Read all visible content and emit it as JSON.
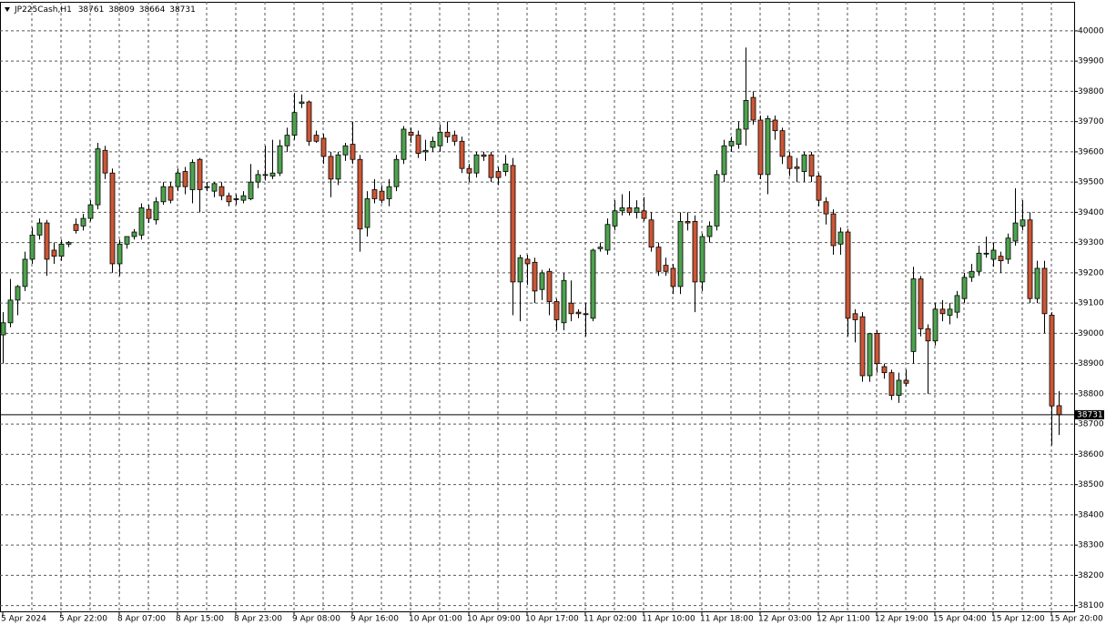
{
  "chart_data": {
    "type": "candlestick",
    "symbol": "JP225Cash,H1",
    "categories": [
      "5 Apr 2024",
      null,
      null,
      null,
      null,
      null,
      null,
      null,
      "5 Apr 22:00",
      null,
      null,
      null,
      null,
      null,
      null,
      null,
      "8 Apr 07:00",
      null,
      null,
      null,
      null,
      null,
      null,
      null,
      "8 Apr 15:00",
      null,
      null,
      null,
      null,
      null,
      null,
      null,
      "8 Apr 23:00",
      null,
      null,
      null,
      null,
      null,
      null,
      null,
      "9 Apr 08:00",
      null,
      null,
      null,
      null,
      null,
      null,
      null,
      "9 Apr 16:00",
      null,
      null,
      null,
      null,
      null,
      null,
      null,
      "10 Apr 01:00",
      null,
      null,
      null,
      null,
      null,
      null,
      null,
      "10 Apr 09:00",
      null,
      null,
      null,
      null,
      null,
      null,
      null,
      "10 Apr 17:00",
      null,
      null,
      null,
      null,
      null,
      null,
      null,
      "11 Apr 02:00",
      null,
      null,
      null,
      null,
      null,
      null,
      null,
      "11 Apr 10:00",
      null,
      null,
      null,
      null,
      null,
      null,
      null,
      "11 Apr 18:00",
      null,
      null,
      null,
      null,
      null,
      null,
      null,
      "12 Apr 03:00",
      null,
      null,
      null,
      null,
      null,
      null,
      null,
      "12 Apr 11:00",
      null,
      null,
      null,
      null,
      null,
      null,
      null,
      "12 Apr 19:00",
      null,
      null,
      null,
      null,
      null,
      null,
      null,
      "15 Apr 04:00",
      null,
      null,
      null,
      null,
      null,
      null,
      null,
      "15 Apr 12:00",
      null,
      null,
      null,
      null,
      null,
      null,
      null,
      "15 Apr 20:00",
      null
    ],
    "open": [
      38995,
      39035,
      39110,
      39155,
      39245,
      39325,
      39365,
      39275,
      39255,
      39295,
      39360,
      39355,
      39380,
      39425,
      39605,
      39530,
      39230,
      39295,
      39320,
      39325,
      39410,
      39375,
      39435,
      39485,
      39485,
      39535,
      39475,
      39575,
      39485,
      39470,
      39485,
      39455,
      39445,
      39440,
      39445,
      39500,
      39525,
      39520,
      39530,
      39620,
      39655,
      39760,
      39765,
      39655,
      39645,
      39585,
      39510,
      39590,
      39625,
      39575,
      39350,
      39475,
      39470,
      39445,
      39485,
      39575,
      39665,
      39655,
      39600,
      39615,
      39620,
      39665,
      39655,
      39635,
      39545,
      39530,
      39590,
      39590,
      39535,
      39535,
      39555,
      39170,
      39245,
      39235,
      39145,
      39205,
      39105,
      39035,
      39100,
      39070,
      39065,
      39050,
      39280,
      39275,
      39355,
      39405,
      39415,
      39400,
      39405,
      39375,
      39285,
      39225,
      39215,
      39155,
      39370,
      39370,
      39170,
      39320,
      39355,
      39525,
      39620,
      39625,
      39675,
      39780,
      39705,
      39525,
      39705,
      39670,
      39585,
      39550,
      39535,
      39590,
      39520,
      39435,
      39395,
      39295,
      39335,
      39065,
      39055,
      38860,
      39000,
      38890,
      38870,
      38795,
      38845,
      38940,
      39180,
      39015,
      38975,
      39080,
      39060,
      39070,
      39115,
      39185,
      39205,
      39265,
      39245,
      39255,
      39245,
      39305,
      39355,
      39375,
      39115,
      39215,
      39060,
      38761
    ],
    "high": [
      39070,
      39180,
      39160,
      39270,
      39350,
      39380,
      39375,
      39300,
      39310,
      39305,
      39380,
      39395,
      39440,
      39630,
      39620,
      39545,
      39310,
      39320,
      39345,
      39430,
      39425,
      39450,
      39500,
      39500,
      39545,
      39550,
      39575,
      39580,
      39500,
      39500,
      39500,
      39465,
      39460,
      39470,
      39560,
      39540,
      39620,
      39640,
      39640,
      39680,
      39795,
      39790,
      39770,
      39670,
      39660,
      39600,
      39600,
      39630,
      39700,
      39590,
      39470,
      39510,
      39490,
      39510,
      39590,
      39685,
      39680,
      39670,
      39640,
      39650,
      39690,
      39700,
      39670,
      39650,
      39560,
      39600,
      39600,
      39600,
      39550,
      39590,
      39580,
      39260,
      39260,
      39250,
      39210,
      39215,
      39115,
      39200,
      39175,
      39080,
      39100,
      39280,
      39300,
      39380,
      39440,
      39460,
      39470,
      39440,
      39450,
      39400,
      39300,
      39250,
      39230,
      39400,
      39400,
      39390,
      39330,
      39370,
      39540,
      39640,
      39650,
      39700,
      39945,
      39800,
      39720,
      39720,
      39720,
      39680,
      39600,
      39580,
      39600,
      39600,
      39530,
      39450,
      39410,
      39350,
      39345,
      39080,
      39070,
      39000,
      39010,
      38900,
      38880,
      38870,
      38880,
      39220,
      39190,
      39030,
      39100,
      39110,
      39100,
      39140,
      39200,
      39230,
      39290,
      39320,
      39300,
      39270,
      39330,
      39480,
      39440,
      39400,
      39240,
      39240,
      39070,
      38809
    ],
    "low": [
      38900,
      39020,
      39060,
      39140,
      39230,
      39310,
      39190,
      39230,
      39240,
      39285,
      39330,
      39340,
      39370,
      39410,
      39510,
      39200,
      39190,
      39280,
      39310,
      39310,
      39365,
      39360,
      39425,
      39430,
      39470,
      39460,
      39430,
      39400,
      39470,
      39450,
      39440,
      39420,
      39425,
      39430,
      39440,
      39480,
      39505,
      39510,
      39520,
      39600,
      39640,
      39745,
      39620,
      39630,
      39560,
      39450,
      39490,
      39570,
      39560,
      39270,
      39320,
      39430,
      39430,
      39420,
      39470,
      39560,
      39630,
      39580,
      39570,
      39600,
      39600,
      39630,
      39620,
      39530,
      39500,
      39515,
      39570,
      39500,
      39490,
      39520,
      39060,
      39040,
      39160,
      39100,
      39110,
      39060,
      39010,
      39010,
      39040,
      39050,
      38990,
      39040,
      39270,
      39260,
      39340,
      39390,
      39390,
      39380,
      39370,
      39270,
      39190,
      39190,
      39130,
      39130,
      39340,
      39070,
      39140,
      39300,
      39340,
      39500,
      39600,
      39610,
      39620,
      39690,
      39510,
      39460,
      39640,
      39560,
      39520,
      39500,
      39500,
      39500,
      39420,
      39360,
      39260,
      39260,
      38990,
      38970,
      38840,
      38840,
      38870,
      38850,
      38780,
      38770,
      38825,
      38900,
      38990,
      38800,
      38960,
      39040,
      39030,
      39050,
      39100,
      39170,
      39190,
      39250,
      39220,
      39200,
      39230,
      39290,
      39340,
      39100,
      39100,
      39000,
      38630,
      38664
    ],
    "close": [
      39035,
      39110,
      39155,
      39245,
      39325,
      39365,
      39245,
      39255,
      39295,
      39300,
      39340,
      39380,
      39425,
      39610,
      39530,
      39230,
      39295,
      39320,
      39335,
      39415,
      39380,
      39435,
      39485,
      39440,
      39530,
      39485,
      39565,
      39475,
      39485,
      39495,
      39455,
      39435,
      39445,
      39455,
      39500,
      39525,
      39525,
      39530,
      39620,
      39655,
      39730,
      39765,
      39635,
      39635,
      39585,
      39510,
      39590,
      39620,
      39575,
      39345,
      39445,
      39445,
      39440,
      39485,
      39575,
      39675,
      39655,
      39595,
      39605,
      39635,
      39665,
      39650,
      39635,
      39545,
      39530,
      39590,
      39585,
      39515,
      39515,
      39560,
      39170,
      39250,
      39230,
      39140,
      39200,
      39105,
      39045,
      39175,
      39065,
      39065,
      39065,
      39275,
      39285,
      39360,
      39405,
      39415,
      39400,
      39415,
      39380,
      39285,
      39205,
      39205,
      39155,
      39370,
      39365,
      39170,
      39320,
      39355,
      39525,
      39620,
      39635,
      39675,
      39770,
      39705,
      39525,
      39710,
      39670,
      39585,
      39545,
      39545,
      39590,
      39520,
      39440,
      39395,
      39290,
      39335,
      39050,
      39045,
      38860,
      38999,
      38900,
      38870,
      38795,
      38845,
      38835,
      39180,
      39015,
      38975,
      39080,
      39065,
      39080,
      39125,
      39185,
      39205,
      39265,
      39265,
      39275,
      39240,
      39315,
      39365,
      39375,
      39115,
      39215,
      39065,
      38760,
      38731
    ],
    "ylim": [
      38081,
      40096
    ],
    "yticks": [
      38100,
      38200,
      38300,
      38400,
      38500,
      38600,
      38700,
      38800,
      38900,
      39000,
      39100,
      39200,
      39300,
      39400,
      39500,
      39600,
      39700,
      39800,
      39900,
      40000
    ],
    "up_color": "#4ea24e",
    "down_color": "#cc5636",
    "grid": true
  }
}
